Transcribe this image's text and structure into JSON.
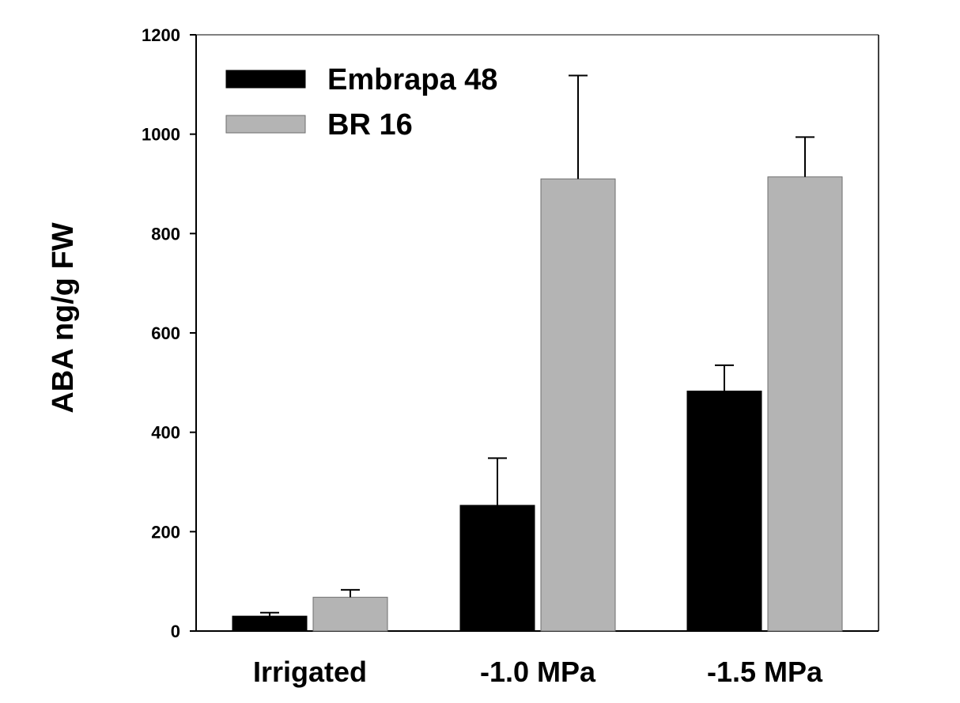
{
  "chart_data": {
    "type": "bar",
    "title": "",
    "xlabel": "",
    "ylabel": "ABA ng/g FW",
    "ylim": [
      0,
      1200
    ],
    "yticks": [
      0,
      200,
      400,
      600,
      800,
      1000,
      1200
    ],
    "ytick_labels": [
      "0",
      "200",
      "400",
      "600",
      "800",
      "1000",
      "1200"
    ],
    "categories": [
      "Irrigated",
      "-1.0 MPa",
      "-1.5 MPa"
    ],
    "legend_position": "top-left",
    "grid": false,
    "series": [
      {
        "name": "Embrapa 48",
        "color": "#000000",
        "values": [
          30,
          253,
          483
        ],
        "errors": [
          7,
          95,
          52
        ]
      },
      {
        "name": "BR 16",
        "color": "#b4b4b4",
        "values": [
          68,
          910,
          914
        ],
        "errors": [
          15,
          208,
          80
        ]
      }
    ]
  }
}
